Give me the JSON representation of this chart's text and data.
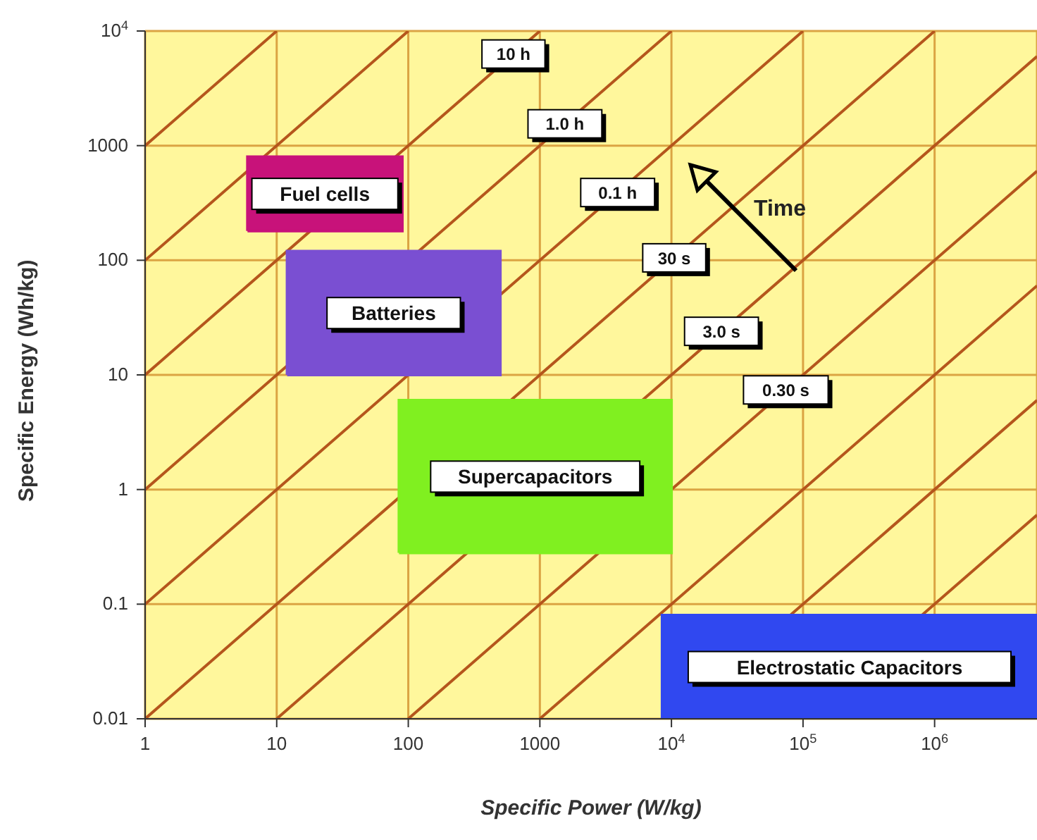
{
  "chart_data": {
    "type": "line",
    "xlabel": "Specific Power (W/kg)",
    "ylabel": "Specific Energy (Wh/kg)",
    "log": "xy",
    "xlim": [
      1,
      6000000
    ],
    "xticks": [
      1,
      10,
      100,
      1000,
      {
        "value": 10000,
        "label": "10$^{4}$"
      },
      {
        "value": 100000,
        "label": "10$^{5}$"
      },
      {
        "value": 1000000,
        "label": "10$^{6}$"
      }
    ],
    "ylim": [
      0.01,
      10000
    ],
    "yticks": [
      0.01,
      0.1,
      1,
      10,
      100,
      1000,
      {
        "value": 10000,
        "label": "10$^{4}$"
      }
    ],
    "grid": true,
    "marker": "none",
    "series": [
      {
        "color": "#b5561c",
        "x": [
          1,
          10
        ],
        "values": [
          1000,
          10000
        ]
      },
      {
        "color": "#b5561c",
        "x": [
          1,
          100
        ],
        "values": [
          100,
          10000
        ]
      },
      {
        "color": "#b5561c",
        "x": [
          1,
          1000
        ],
        "values": [
          10,
          10000
        ]
      },
      {
        "color": "#b5561c",
        "x": [
          1,
          10000
        ],
        "values": [
          1,
          10000
        ]
      },
      {
        "color": "#b5561c",
        "x": [
          1,
          100000
        ],
        "values": [
          0.1,
          10000
        ]
      },
      {
        "color": "#b5561c",
        "x": [
          1,
          1000000
        ],
        "values": [
          0.01,
          10000
        ]
      },
      {
        "color": "#b5561c",
        "x": [
          10,
          6000000
        ],
        "values": [
          0.01,
          6000
        ]
      },
      {
        "color": "#b5561c",
        "x": [
          100,
          6000000
        ],
        "values": [
          0.01,
          600
        ]
      },
      {
        "color": "#b5561c",
        "x": [
          1000,
          6000000
        ],
        "values": [
          0.01,
          60
        ]
      },
      {
        "color": "#b5561c",
        "x": [
          80000,
          6000000
        ],
        "values": [
          0.08,
          6
        ]
      },
      {
        "color": "#b5561c",
        "x": [
          800000,
          6000000
        ],
        "values": [
          0.08,
          0.6
        ]
      },
      {
        "type": "area",
        "name": "Fuel cells",
        "color": "#c8127a",
        "x": [
          6,
          90,
          90,
          6,
          6
        ],
        "values": [
          180,
          180,
          800,
          800,
          180
        ]
      },
      {
        "type": "area",
        "name": "Batteries",
        "color": "#7a4fd2",
        "x": [
          12,
          500,
          500,
          12,
          12
        ],
        "values": [
          10,
          10,
          120,
          120,
          10
        ]
      },
      {
        "type": "area",
        "name": "Supercapacitors",
        "color": "#80f020",
        "x": [
          85,
          10000,
          10000,
          85,
          85
        ],
        "values": [
          0.28,
          0.28,
          6,
          6,
          0.28
        ]
      },
      {
        "type": "area",
        "name": "Electrostatic Capacitors",
        "color": "#3048f0",
        "x": [
          8500,
          6000000,
          6000000,
          8500,
          8500
        ],
        "values": [
          0.01,
          0.01,
          0.08,
          0.08,
          0.01
        ]
      }
    ],
    "annotations": [
      {
        "text": "10 h",
        "x": 630,
        "y": 6300
      },
      {
        "text": "1.0 h",
        "x": 1550,
        "y": 1550
      },
      {
        "text": "0.1 h",
        "x": 3900,
        "y": 390
      },
      {
        "text": "30 s",
        "x": 10500,
        "y": 105
      },
      {
        "text": "3.0 s",
        "x": 24000,
        "y": 24
      },
      {
        "text": "0.30 s",
        "x": 74000,
        "y": 7.4
      },
      "Time"
    ]
  }
}
